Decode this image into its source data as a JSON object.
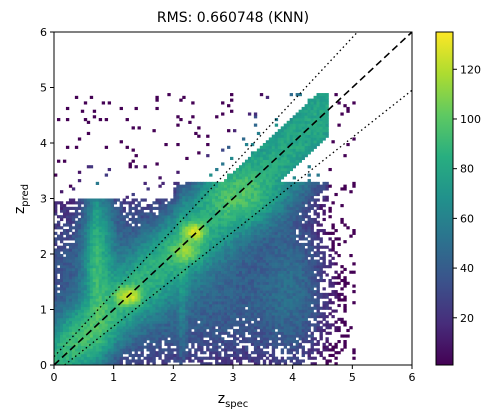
{
  "chart_data": {
    "type": "heatmap",
    "title": "RMS: 0.660748 (KNN)",
    "xlabel": {
      "main": "z",
      "sub": "spec"
    },
    "ylabel": {
      "main": "z",
      "sub": "pred"
    },
    "xlim": [
      0,
      6
    ],
    "ylim": [
      0,
      6
    ],
    "xticks": [
      "0",
      "1",
      "2",
      "3",
      "4",
      "5",
      "6"
    ],
    "yticks": [
      "0",
      "1",
      "2",
      "3",
      "4",
      "5",
      "6"
    ],
    "colorbar": {
      "range": [
        1,
        135
      ],
      "ticks": [
        "20",
        "40",
        "60",
        "80",
        "100",
        "120"
      ],
      "tick_values": [
        20,
        40,
        60,
        80,
        100,
        120
      ],
      "colormap": "viridis"
    },
    "reference_lines": [
      {
        "style": "dashed",
        "slope": 1,
        "intercept": 0
      },
      {
        "style": "dotted",
        "slope": 1.15,
        "intercept": 0.15
      },
      {
        "style": "dotted",
        "slope": 0.85,
        "intercept": -0.15
      }
    ],
    "density_clusters": [
      {
        "x": 1.25,
        "y": 1.25,
        "weight": 120
      },
      {
        "x": 2.35,
        "y": 2.4,
        "weight": 130
      },
      {
        "x": 2.2,
        "y": 2.05,
        "weight": 70
      },
      {
        "x": 0.75,
        "y": 1.8,
        "weight": 40
      },
      {
        "x": 3.1,
        "y": 3.05,
        "weight": 45
      },
      {
        "x": 0.4,
        "y": 0.5,
        "weight": 35
      }
    ]
  }
}
